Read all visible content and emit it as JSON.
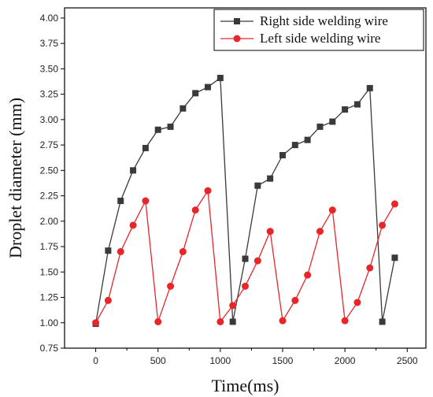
{
  "chart_data": {
    "type": "line",
    "title": "",
    "xlabel": "Time(ms)",
    "ylabel": "Droplet diameter (mm)",
    "xlim": [
      -250,
      2650
    ],
    "ylim": [
      0.75,
      4.1
    ],
    "x_ticks": [
      0,
      500,
      1000,
      1500,
      2000,
      2500
    ],
    "y_ticks": [
      0.75,
      1.0,
      1.25,
      1.5,
      1.75,
      2.0,
      2.25,
      2.5,
      2.75,
      3.0,
      3.25,
      3.5,
      3.75,
      4.0
    ],
    "grid": false,
    "legend_position": "top-right",
    "series": [
      {
        "name": "Right side welding wire",
        "color": "#3a3a3a",
        "marker": "square",
        "points": [
          [
            0,
            0.99
          ],
          [
            100,
            1.71
          ],
          [
            200,
            2.2
          ],
          [
            300,
            2.5
          ],
          [
            400,
            2.72
          ],
          [
            500,
            2.9
          ],
          [
            600,
            2.93
          ],
          [
            700,
            3.11
          ],
          [
            800,
            3.26
          ],
          [
            900,
            3.32
          ],
          [
            1000,
            3.41
          ],
          [
            1100,
            1.01
          ],
          [
            1200,
            1.63
          ],
          [
            1300,
            2.35
          ],
          [
            1400,
            2.42
          ],
          [
            1500,
            2.65
          ],
          [
            1600,
            2.75
          ],
          [
            1700,
            2.8
          ],
          [
            1800,
            2.93
          ],
          [
            1900,
            2.98
          ],
          [
            2000,
            3.1
          ],
          [
            2100,
            3.15
          ],
          [
            2200,
            3.31
          ],
          [
            2300,
            1.01
          ],
          [
            2400,
            1.64
          ]
        ]
      },
      {
        "name": "Left side welding wire",
        "color": "#e8262a",
        "marker": "circle",
        "points": [
          [
            0,
            1.0
          ],
          [
            100,
            1.22
          ],
          [
            200,
            1.7
          ],
          [
            300,
            1.96
          ],
          [
            400,
            2.2
          ],
          [
            500,
            1.01
          ],
          [
            600,
            1.36
          ],
          [
            700,
            1.7
          ],
          [
            800,
            2.11
          ],
          [
            900,
            2.3
          ],
          [
            1000,
            1.01
          ],
          [
            1100,
            1.17
          ],
          [
            1200,
            1.36
          ],
          [
            1300,
            1.61
          ],
          [
            1400,
            1.9
          ],
          [
            1500,
            1.02
          ],
          [
            1600,
            1.22
          ],
          [
            1700,
            1.47
          ],
          [
            1800,
            1.9
          ],
          [
            1900,
            2.11
          ],
          [
            2000,
            1.02
          ],
          [
            2100,
            1.2
          ],
          [
            2200,
            1.54
          ],
          [
            2300,
            1.96
          ],
          [
            2400,
            2.17
          ]
        ]
      }
    ]
  }
}
